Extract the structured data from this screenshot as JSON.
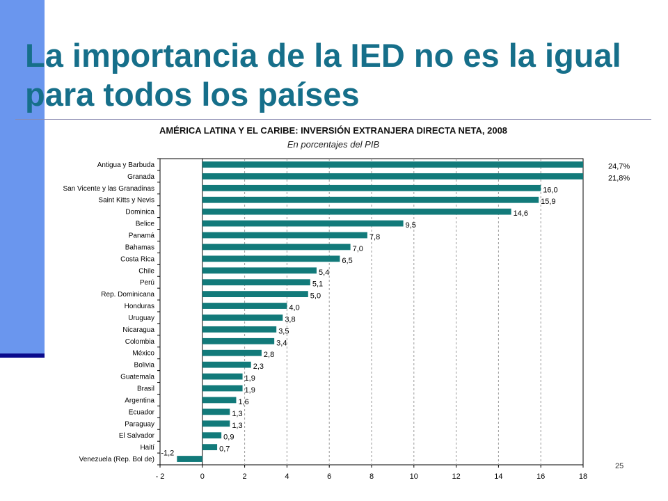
{
  "slide": {
    "title": "La importancia de la IED no es la igual para todos los países",
    "page_number": "25"
  },
  "colors": {
    "bar": "#127a7a",
    "title": "#166f8a",
    "sidebar": "#6a96ee"
  },
  "chart_data": {
    "type": "bar",
    "orientation": "horizontal",
    "title": "AMÉRICA LATINA Y EL CARIBE: INVERSIÓN EXTRANJERA DIRECTA NETA, 2008",
    "subtitle": "En porcentajes del PIB",
    "xlim": [
      -2,
      18
    ],
    "xticks": [
      -2,
      0,
      2,
      4,
      6,
      8,
      10,
      12,
      14,
      16,
      18
    ],
    "xtick_labels": [
      "- 2",
      "0",
      "2",
      "4",
      "6",
      "8",
      "10",
      "12",
      "14",
      "16",
      "18"
    ],
    "grid": "vertical dashed",
    "categories": [
      "Antigua y Barbuda",
      "Granada",
      "San Vicente y las Granadinas",
      "Saint Kitts y Nevis",
      "Dominica",
      "Belice",
      "Panamá",
      "Bahamas",
      "Costa Rica",
      "Chile",
      "Perú",
      "Rep. Dominicana",
      "Honduras",
      "Uruguay",
      "Nicaragua",
      "Colombia",
      "México",
      "Bolivia",
      "Guatemala",
      "Brasil",
      "Argentina",
      "Ecuador",
      "Paraguay",
      "El Salvador",
      "Haití",
      "Venezuela (Rep. Bol de)"
    ],
    "values": [
      24.7,
      21.8,
      16.0,
      15.9,
      14.6,
      9.5,
      7.8,
      7.0,
      6.5,
      5.4,
      5.1,
      5.0,
      4.0,
      3.8,
      3.5,
      3.4,
      2.8,
      2.3,
      1.9,
      1.9,
      1.6,
      1.3,
      1.3,
      0.9,
      0.7,
      -1.2
    ],
    "value_labels": [
      "24,7%",
      "21,8%",
      "16,0",
      "15,9",
      "14,6",
      "9,5",
      "7,8",
      "7,0",
      "6,5",
      "5,4",
      "5,1",
      "5,0",
      "4,0",
      "3,8",
      "3,5",
      "3,4",
      "2,8",
      "2,3",
      "1,9",
      "1,9",
      "1,6",
      "1,3",
      "1,3",
      "0,9",
      "0,7",
      "-1,2"
    ],
    "truncated_at_axis_max": [
      "Antigua y Barbuda",
      "Granada"
    ]
  }
}
